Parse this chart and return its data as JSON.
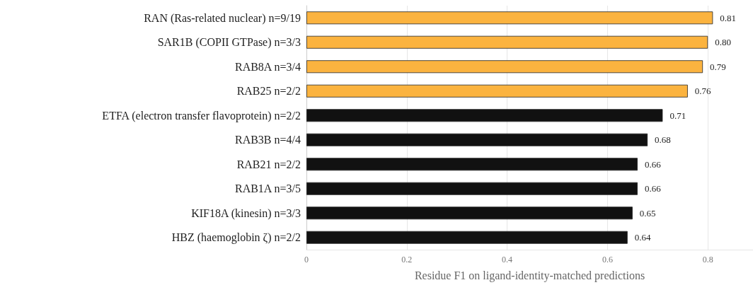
{
  "chart_data": {
    "type": "bar",
    "orientation": "horizontal",
    "categories": [
      "RAN (Ras-related nuclear) n=9/19",
      "SAR1B (COPII GTPase) n=3/3",
      "RAB8A n=3/4",
      "RAB25 n=2/2",
      "ETFA (electron transfer flavoprotein) n=2/2",
      "RAB3B n=4/4",
      "RAB21 n=2/2",
      "RAB1A n=3/5",
      "KIF18A (kinesin) n=3/3",
      "HBZ (haemoglobin ζ) n=2/2"
    ],
    "values": [
      0.81,
      0.8,
      0.79,
      0.76,
      0.71,
      0.68,
      0.66,
      0.66,
      0.65,
      0.64
    ],
    "value_labels": [
      "0.81",
      "0.80",
      "0.79",
      "0.76",
      "0.71",
      "0.68",
      "0.66",
      "0.66",
      "0.65",
      "0.64"
    ],
    "colors": [
      "#fbb33f",
      "#fbb33f",
      "#fbb33f",
      "#fbb33f",
      "#111111",
      "#111111",
      "#111111",
      "#111111",
      "#111111",
      "#111111"
    ],
    "xlabel": "Residue F1 on ligand-identity-matched predictions",
    "xlim": [
      0,
      0.89
    ],
    "xticks": [
      0,
      0.2,
      0.4,
      0.6,
      0.8
    ],
    "grid": "x"
  }
}
